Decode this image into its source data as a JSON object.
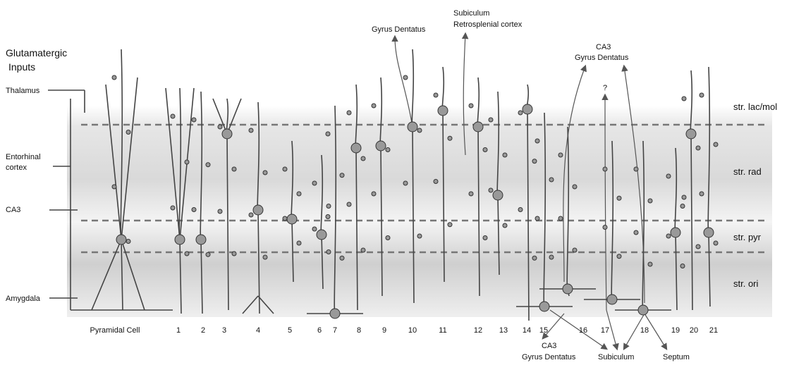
{
  "inputs": {
    "title": [
      "Glutamatergic",
      "Inputs"
    ],
    "sources": [
      [
        "Thalamus"
      ],
      [
        "Entorhinal",
        "cortex"
      ],
      [
        "CA3"
      ],
      [
        "Amygdala"
      ]
    ]
  },
  "layers": [
    "str. lac/mol",
    "str. rad",
    "str. pyr",
    "str. ori"
  ],
  "cells": [
    "Pyramidal Cell",
    "1",
    "2",
    "3",
    "4",
    "5",
    "6",
    "7",
    "8",
    "9",
    "10",
    "11",
    "12",
    "13",
    "14",
    "15",
    "16",
    "17",
    "18",
    "19",
    "20",
    "21"
  ],
  "projections": {
    "top": [
      [
        "Gyrus Dentatus"
      ],
      [
        "Subiculum",
        "Retrosplenial cortex"
      ],
      [
        "CA3",
        "Gyrus Dentatus"
      ],
      [
        "?"
      ]
    ],
    "bottom": [
      [
        "CA3",
        "Gyrus Dentatus"
      ],
      [
        "Subiculum"
      ],
      [
        "Septum"
      ]
    ]
  }
}
